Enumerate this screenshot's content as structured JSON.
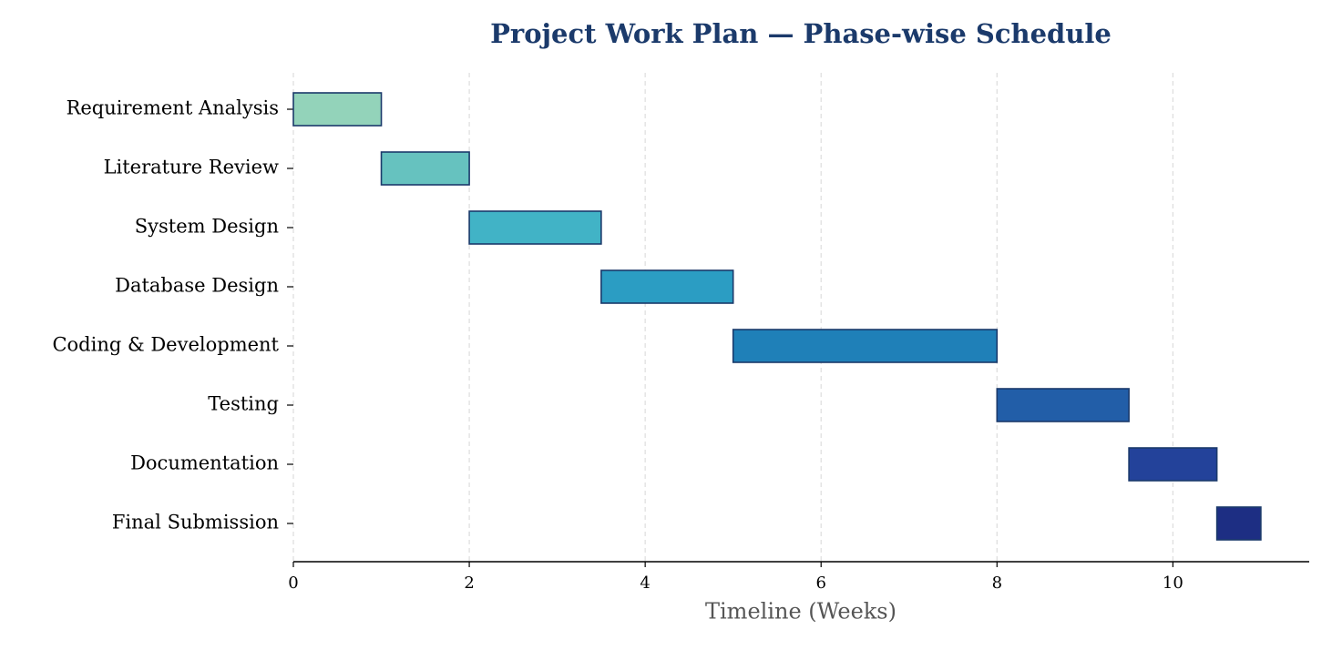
{
  "chart_data": {
    "type": "gantt",
    "title": "Project Work Plan — Phase-wise Schedule",
    "x_label": "Timeline (Weeks)",
    "categories": [
      "Requirement Analysis",
      "Literature Review",
      "System Design",
      "Database Design",
      "Coding & Development",
      "Testing",
      "Documentation",
      "Final Submission"
    ],
    "starts": [
      0,
      1,
      2,
      3.5,
      5,
      8,
      9.5,
      10.5
    ],
    "durations": [
      1,
      1,
      1.5,
      1.5,
      3,
      1.5,
      1,
      0.5
    ],
    "colors": [
      "#93d3ba",
      "#66c2bf",
      "#41b3c6",
      "#2b9dc3",
      "#1f80b8",
      "#225ea8",
      "#23429a",
      "#1d2e83"
    ],
    "edge_color": "#1b3a6b",
    "xlim": [
      0,
      11.55
    ],
    "xticks": [
      0,
      2,
      4,
      6,
      8,
      10
    ],
    "grid": true
  }
}
